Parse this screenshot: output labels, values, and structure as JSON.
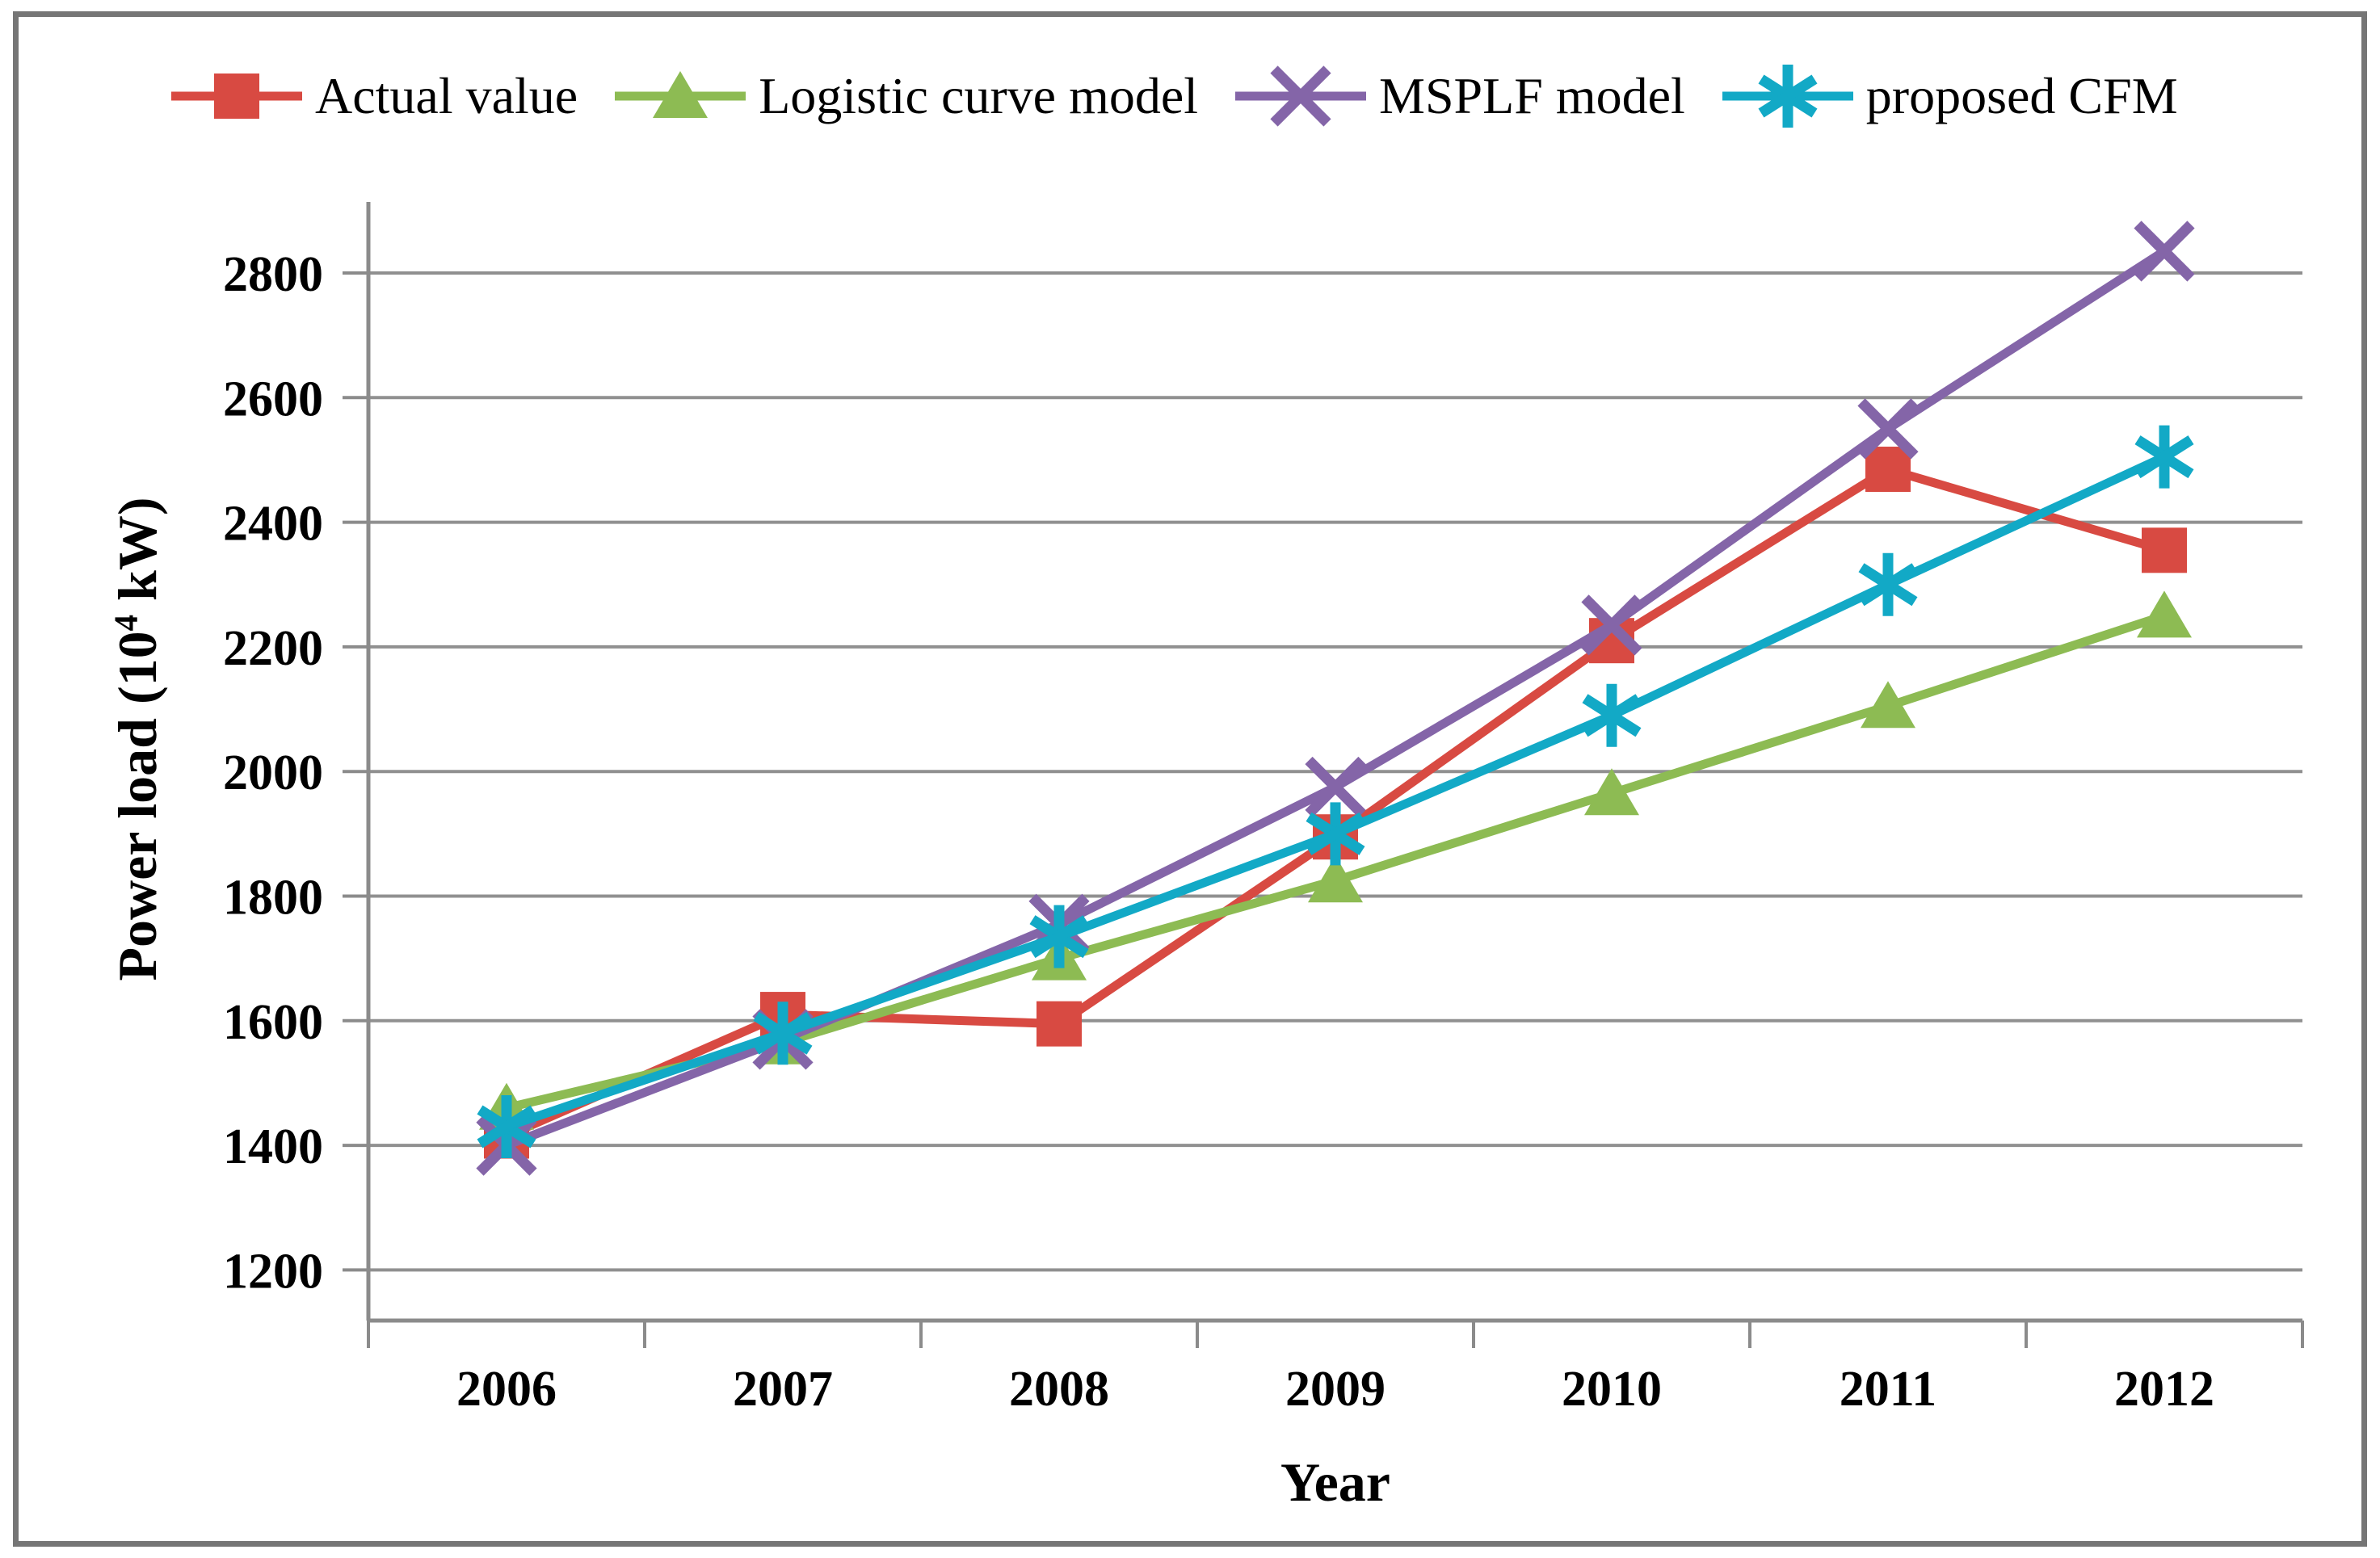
{
  "figure": {
    "background": "#ffffff",
    "border_color": "#767676"
  },
  "legend": {
    "position": "top",
    "items": [
      "Actual value",
      "Logistic curve model",
      "MSPLF model",
      "proposed CFM"
    ]
  },
  "chart_data": {
    "type": "line",
    "title": "",
    "xlabel": "Year",
    "ylabel": "Power load (10⁴ kW)",
    "ylabel_parts": {
      "base": "Power load (10",
      "sup": "4",
      "end": " kW)"
    },
    "x": [
      "2006",
      "2007",
      "2008",
      "2009",
      "2010",
      "2011",
      "2012"
    ],
    "yticks": [
      1200,
      1400,
      1600,
      1800,
      2000,
      2200,
      2400,
      2600,
      2800
    ],
    "ylim": [
      1200,
      2800
    ],
    "grid": true,
    "legend_position": "top",
    "series": [
      {
        "name": "Actual value",
        "marker": "square",
        "color": "#d84a42",
        "values": [
          1415,
          1610,
          1595,
          1895,
          2210,
          2485,
          2355
        ]
      },
      {
        "name": "Logistic curve model",
        "marker": "triangle",
        "color": "#8dbb53",
        "values": [
          1460,
          1565,
          1700,
          1825,
          1965,
          2105,
          2250
        ]
      },
      {
        "name": "MSPLF model",
        "marker": "x",
        "color": "#8465a8",
        "values": [
          1400,
          1570,
          1755,
          1975,
          2235,
          2550,
          2835
        ]
      },
      {
        "name": "proposed CFM",
        "marker": "asterisk",
        "color": "#12a9c6",
        "values": [
          1430,
          1580,
          1735,
          1900,
          2090,
          2300,
          2505
        ]
      }
    ],
    "axis_color": "#8b8b8b",
    "gridline_color": "#909090"
  }
}
